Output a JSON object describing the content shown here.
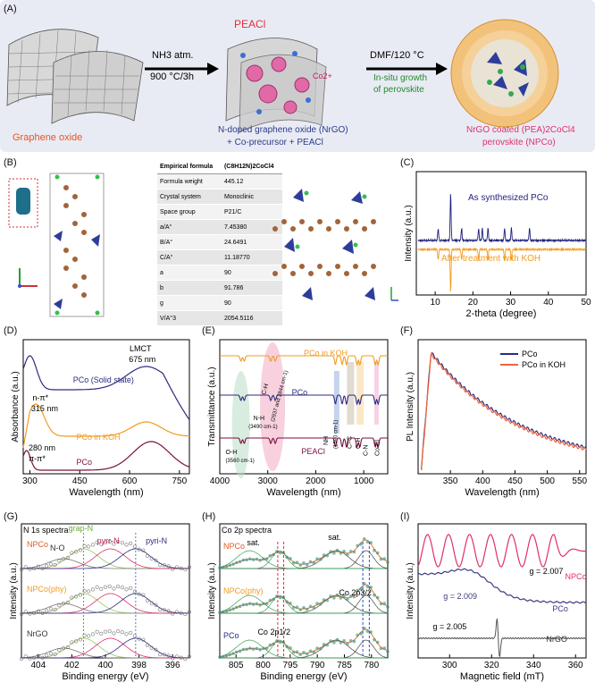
{
  "panels": {
    "A": "(A)",
    "B": "(B)",
    "C": "(C)",
    "D": "(D)",
    "E": "(E)",
    "F": "(F)",
    "G": "(G)",
    "H": "(H)",
    "I": "(I)"
  },
  "scheme": {
    "graphene_label": "Graphene oxide",
    "peacl_label": "PEACl",
    "step1_top": "NH3 atm.",
    "step1_bottom": "900 °C/3h",
    "cobalt_ion": "Co2+",
    "nrgo_caption_1": "N-doped graphene oxide (NrGO)",
    "nrgo_caption_2": "+ Co-precursor + PEACl",
    "step2_top": "DMF/120 °C",
    "step2_green_1": "In-situ growth",
    "step2_green_2": "of perovskite",
    "product_1": "NrGO coated (PEA)2CoCl4",
    "product_2": "perovskite (NPCo)"
  },
  "crystal_table": {
    "header": [
      "Empirical formula",
      "(C8H12N)2CoCl4"
    ],
    "rows": [
      [
        "Formula weight",
        "445.12"
      ],
      [
        "Crystal system",
        "Monoclinic"
      ],
      [
        "Space group",
        "P21/C"
      ],
      [
        "a/A°",
        "7.45380"
      ],
      [
        "B/A°",
        "24.6491"
      ],
      [
        "C/A°",
        "11.18770"
      ],
      [
        "a",
        "90"
      ],
      [
        "b",
        "91.786"
      ],
      [
        "g",
        "90"
      ],
      [
        "V/A°3",
        "2054.5116"
      ]
    ]
  },
  "chart_data": [
    {
      "panel": "C",
      "type": "line",
      "xlabel": "2-theta (degree)",
      "ylabel": "Intensity (a.u.)",
      "xticks": [
        "10",
        "20",
        "30",
        "40",
        "50"
      ],
      "xlim": [
        5,
        50
      ],
      "series": [
        {
          "name": "As synthesized PCo",
          "color": "#1f1f7a",
          "peaks_2theta": [
            10.8,
            14.1,
            17.0,
            21.5,
            22.5,
            24.0,
            28.4,
            30.2,
            35.0
          ]
        },
        {
          "name": "After treatment with KOH",
          "color": "#f29b1d",
          "peaks_2theta": [
            10.8,
            14.1,
            17.0,
            21.5,
            24.0,
            28.4,
            30.2
          ]
        }
      ]
    },
    {
      "panel": "D",
      "type": "line",
      "xlabel": "Wavelength (nm)",
      "ylabel": "Absorbance (a.u.)",
      "xticks": [
        "300",
        "450",
        "600",
        "750"
      ],
      "xlim": [
        280,
        780
      ],
      "annotations": [
        "LMCT",
        "675 nm",
        "n-π*",
        "315 nm",
        "280 nm",
        "π-π*"
      ],
      "series": [
        {
          "name": "PCo (Solid state)",
          "color": "#2b2b80"
        },
        {
          "name": "PCo in KOH",
          "color": "#f29b1d"
        },
        {
          "name": "PCo",
          "color": "#7a1040"
        }
      ]
    },
    {
      "panel": "E",
      "type": "line",
      "xlabel": "Wavelength (nm)",
      "ylabel": "Transmittance (a.u.)",
      "xticks": [
        "4000",
        "3000",
        "2000",
        "1000"
      ],
      "xlim": [
        4000,
        500
      ],
      "annotations": [
        "O-H",
        "(3560 cm-1)",
        "N-H",
        "(3490 cm-1)",
        "C-H",
        "(2937 and 2844 cm-1)",
        "NH",
        "(1590 cm-1)",
        "C=C",
        "C-H",
        "C-N",
        "Co-Cl"
      ],
      "series": [
        {
          "name": "PCo in KOH",
          "color": "#f29b1d"
        },
        {
          "name": "PCo",
          "color": "#2b2b80"
        },
        {
          "name": "PEACl",
          "color": "#7a1040"
        }
      ]
    },
    {
      "panel": "F",
      "type": "line",
      "xlabel": "Wavelength (nm)",
      "ylabel": "PL Intensity (a.u.)",
      "xticks": [
        "350",
        "400",
        "450",
        "500",
        "550"
      ],
      "xlim": [
        300,
        560
      ],
      "series": [
        {
          "name": "PCo",
          "color": "#2b2b80",
          "peak_nm": 322
        },
        {
          "name": "PCo in KOH",
          "color": "#f0643c",
          "peak_nm": 322
        }
      ]
    },
    {
      "panel": "G",
      "type": "line",
      "title": "N 1s spectra",
      "xlabel": "Binding energy (eV)",
      "ylabel": "Intensity (a.u.)",
      "xticks": [
        "404",
        "402",
        "400",
        "398",
        "396"
      ],
      "xlim": [
        405,
        395
      ],
      "peak_labels": [
        "grap-N",
        "N-O",
        "pyrr-N",
        "pyri-N"
      ],
      "series": [
        {
          "name": "NPCo"
        },
        {
          "name": "NPCo(phy)"
        },
        {
          "name": "NrGO"
        }
      ]
    },
    {
      "panel": "H",
      "type": "line",
      "title": "Co 2p spectra",
      "xlabel": "Binding energy (eV)",
      "ylabel": "Intensity (a.u.)",
      "xticks": [
        "805",
        "800",
        "795",
        "790",
        "785",
        "780"
      ],
      "xlim": [
        808,
        777
      ],
      "peak_labels": [
        "sat.",
        "sat.",
        "Co 2p1/2",
        "Co 2p3/2"
      ],
      "series": [
        {
          "name": "NPCo"
        },
        {
          "name": "NPCo(phy)"
        },
        {
          "name": "PCo"
        }
      ]
    },
    {
      "panel": "I",
      "type": "line",
      "xlabel": "Magnetic field (mT)",
      "ylabel": "Intensity (a.u.)",
      "xticks": [
        "300",
        "320",
        "340",
        "360"
      ],
      "xlim": [
        285,
        365
      ],
      "series": [
        {
          "name": "NPCo",
          "g": "g = 2.007",
          "color": "#e0306a"
        },
        {
          "name": "PCo",
          "g": "g = 2.009",
          "color": "#3a3a80"
        },
        {
          "name": "NrGO",
          "g": "g = 2.005",
          "color": "#555555"
        }
      ]
    }
  ]
}
